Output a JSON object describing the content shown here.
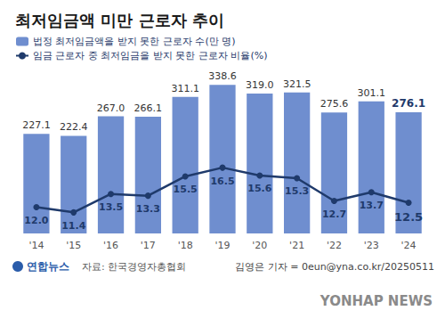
{
  "chart_data": {
    "type": "bar",
    "title": "최저임금액 미만 근로자 추이",
    "categories": [
      "'14",
      "'15",
      "'16",
      "'17",
      "'18",
      "'19",
      "'20",
      "'21",
      "'22",
      "'23",
      "'24"
    ],
    "series": [
      {
        "name": "법정 최저임금액을 받지 못한 근로자 수(만 명)",
        "type": "bar",
        "color": "#6f8ecf",
        "values": [
          227.1,
          222.4,
          267.0,
          266.1,
          311.1,
          338.6,
          319.0,
          321.5,
          275.6,
          301.1,
          276.1
        ],
        "value_labels": [
          "227.1",
          "222.4",
          "267.0",
          "266.1",
          "311.1",
          "338.6",
          "319.0",
          "321.5",
          "275.6",
          "301.1",
          "276.1"
        ]
      },
      {
        "name": "임금 근로자 중 최저임금을 받지 못한 근로자 비율(%)",
        "type": "line",
        "axis": "y2",
        "color": "#1f3a6b",
        "marker": "circle",
        "values": [
          12.0,
          11.4,
          13.5,
          13.3,
          15.5,
          16.5,
          15.6,
          15.3,
          12.7,
          13.7,
          12.5
        ],
        "value_labels": [
          "12.0",
          "11.4",
          "13.5",
          "13.3",
          "15.5",
          "16.5",
          "15.6",
          "15.3",
          "12.7",
          "13.7",
          "12.5"
        ]
      }
    ],
    "ylim": [
      0,
      400
    ],
    "yticks": [],
    "y2lim": [
      9,
      29
    ],
    "y2ticks": [],
    "data_labels": true,
    "tick_labels": "x",
    "grid": false,
    "legend": "top-left"
  },
  "logo": "연합뉴스",
  "source": "자료: 한국경영자총협회",
  "credit": "김영은 기자 = 0eun@yna.co.kr/20250511",
  "watermark": "YONHAP NEWS"
}
